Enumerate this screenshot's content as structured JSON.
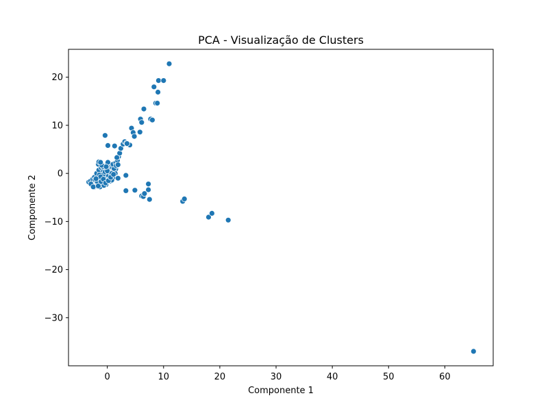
{
  "chart_data": {
    "type": "scatter",
    "title": "PCA - Visualização de Clusters",
    "xlabel": "Componente 1",
    "ylabel": "Componente 2",
    "xlim": [
      -6.9,
      68.6
    ],
    "ylim": [
      -40.0,
      25.8
    ],
    "xticks": [
      0,
      10,
      20,
      30,
      40,
      50,
      60
    ],
    "yticks": [
      -30,
      -20,
      -10,
      0,
      10,
      20
    ],
    "ytick_labels": [
      "−30",
      "−20",
      "−10",
      "0",
      "10",
      "20"
    ],
    "grid": false,
    "legend": "none",
    "point_color": "#1f77b4",
    "series": [
      {
        "x": [
          -3.3,
          -3.0,
          -2.8,
          -2.6,
          -2.5,
          -2.3,
          -2.2,
          -2.0,
          -1.9,
          -1.8,
          -1.7,
          -1.6,
          -1.5,
          -1.4,
          -1.3,
          -1.2,
          -1.1,
          -1.0,
          -0.9,
          -0.8,
          -0.7,
          -0.6,
          -0.5,
          -0.4,
          -0.3,
          -0.2,
          -0.1,
          0.0,
          0.1,
          0.2,
          0.3,
          0.4,
          0.5,
          0.6,
          0.7,
          0.8,
          0.9,
          1.0,
          1.1,
          1.2,
          1.3,
          1.4,
          1.5,
          -2.4,
          -2.1,
          -1.9,
          -1.7,
          -1.5,
          -1.3,
          -1.1,
          -0.9,
          -0.7,
          -0.5,
          -0.3,
          -0.1,
          0.1,
          0.3,
          0.5,
          0.7,
          0.9,
          1.1,
          1.3,
          -2.7,
          -2.2,
          -1.8,
          -1.4,
          -1.0,
          -0.6,
          -0.2,
          0.2,
          0.6,
          1.0,
          1.4,
          -1.6,
          -1.2,
          -0.8,
          -0.4,
          0.0,
          0.4,
          0.8,
          1.2,
          -1.5,
          -1.0,
          -0.5,
          0.0,
          0.5,
          1.0,
          1.5,
          -1.3,
          -0.6,
          0.1,
          0.8,
          -2.9,
          -2.5,
          -2.0,
          -1.6,
          -1.1,
          -0.7,
          -0.3,
          0.2,
          0.6,
          1.1,
          1.6,
          1.8,
          2.0,
          2.2,
          1.9,
          1.7,
          -1.2,
          -0.2,
          -0.4,
          1.3,
          0.1,
          1.9,
          2.4,
          2.8,
          3.1,
          3.4,
          3.7,
          4.0,
          3.5,
          3.3,
          4.3,
          4.6,
          4.8,
          5.8,
          5.9,
          6.1,
          6.5,
          7.7,
          8.0,
          8.3,
          8.6,
          8.9,
          9.0,
          9.1,
          10.0,
          11.0,
          3.3,
          4.9,
          6.1,
          6.4,
          6.6,
          7.3,
          7.3,
          7.5,
          13.4,
          13.7,
          18.0,
          18.6,
          21.5,
          65.1
        ],
        "y": [
          -1.8,
          -1.6,
          -2.1,
          -1.2,
          -2.5,
          -0.8,
          -1.9,
          -2.3,
          -1.0,
          -2.7,
          -1.5,
          -0.4,
          -2.0,
          -1.3,
          0.2,
          -2.4,
          -0.9,
          -1.6,
          0.5,
          -2.2,
          -0.6,
          -1.1,
          0.9,
          -1.9,
          -0.2,
          -1.4,
          0.3,
          -0.8,
          1.0,
          -1.2,
          0.6,
          -0.5,
          1.3,
          -0.9,
          0.8,
          -0.3,
          1.5,
          0.4,
          -0.6,
          1.1,
          0.2,
          1.4,
          0.9,
          -2.9,
          -2.6,
          0.0,
          -2.2,
          0.7,
          -1.8,
          1.2,
          -2.0,
          0.4,
          -1.5,
          1.6,
          -0.7,
          0.9,
          -1.0,
          1.8,
          -0.4,
          1.2,
          0.6,
          1.7,
          -2.4,
          -1.3,
          -1.7,
          -0.3,
          -2.6,
          -0.1,
          -2.3,
          -0.4,
          0.1,
          -0.9,
          0.0,
          1.9,
          -0.7,
          1.4,
          0.3,
          0.5,
          2.0,
          0.0,
          1.0,
          2.4,
          1.7,
          -2.1,
          2.1,
          -1.6,
          1.9,
          2.2,
          -2.8,
          -2.5,
          2.3,
          -1.4,
          -2.2,
          -2.8,
          -1.1,
          -2.6,
          -1.7,
          -1.2,
          -2.0,
          -1.5,
          -0.8,
          -0.2,
          1.6,
          2.7,
          3.5,
          4.2,
          1.8,
          3.3,
          2.3,
          1.4,
          7.9,
          5.7,
          5.8,
          -1.0,
          5.2,
          6.1,
          6.6,
          6.3,
          6.0,
          5.9,
          6.2,
          -0.4,
          9.4,
          8.5,
          7.7,
          8.6,
          11.3,
          10.6,
          13.4,
          11.3,
          11.1,
          18.0,
          14.6,
          14.6,
          16.9,
          19.3,
          19.3,
          22.8,
          -3.6,
          -3.5,
          -4.7,
          -4.8,
          -4.2,
          -2.2,
          -3.4,
          -5.4,
          -5.8,
          -5.3,
          -9.1,
          -8.3,
          -9.7,
          -37.0
        ]
      }
    ]
  }
}
